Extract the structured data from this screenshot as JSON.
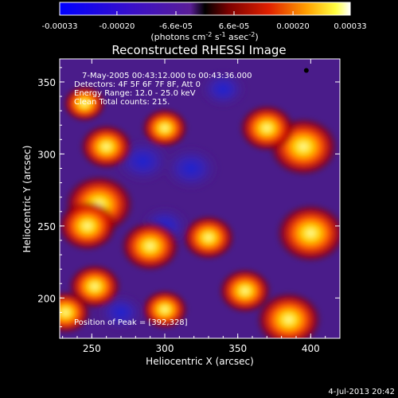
{
  "chart_data": {
    "type": "heatmap",
    "title": "Reconstructed RHESSI Image",
    "xlabel": "Heliocentric X (arcsec)",
    "ylabel": "Heliocentric Y (arcsec)",
    "xlim": [
      228,
      420
    ],
    "ylim": [
      172,
      366
    ],
    "xticks": [
      "250",
      "300",
      "350",
      "400"
    ],
    "yticks": [
      "200",
      "250",
      "300",
      "350"
    ],
    "colorbar": {
      "range": [
        -0.00033,
        0.00033
      ],
      "ticks": [
        "-0.00033",
        "-0.00020",
        "-6.6e-05",
        "6.6e-05",
        "0.00020",
        "0.00033"
      ],
      "label": "(photons cm",
      "label_exp1": "-2",
      "label_mid": " s",
      "label_exp2": "-1",
      "label_mid2": " asec",
      "label_exp3": "-2",
      "label_end": ")"
    },
    "annotations": [
      "7-May-2005 00:43:12.000 to 00:43:36.000",
      "Detectors: 4F 5F 6F 7F 8F, Att 0",
      "Energy Range: 12.0 - 25.0 keV",
      "Clean     Total counts: 215."
    ],
    "peak_label": "Position of Peak = [392,328]",
    "peak": [
      392,
      328
    ],
    "peak_marker": [
      397,
      358
    ],
    "blobs": [
      {
        "x": 255,
        "y": 265,
        "value": 0.00033
      },
      {
        "x": 247,
        "y": 250,
        "value": 0.00025
      },
      {
        "x": 290,
        "y": 236,
        "value": 0.00025
      },
      {
        "x": 330,
        "y": 242,
        "value": 0.0002
      },
      {
        "x": 400,
        "y": 245,
        "value": 0.00033
      },
      {
        "x": 395,
        "y": 305,
        "value": 0.00033
      },
      {
        "x": 370,
        "y": 318,
        "value": 0.00022
      },
      {
        "x": 260,
        "y": 305,
        "value": 0.0002
      },
      {
        "x": 300,
        "y": 318,
        "value": 0.00015
      },
      {
        "x": 245,
        "y": 335,
        "value": 0.00012
      },
      {
        "x": 355,
        "y": 205,
        "value": 0.0002
      },
      {
        "x": 385,
        "y": 185,
        "value": 0.0003
      },
      {
        "x": 252,
        "y": 208,
        "value": 0.0002
      },
      {
        "x": 300,
        "y": 192,
        "value": 0.00015
      },
      {
        "x": 232,
        "y": 190,
        "value": 0.00018
      },
      {
        "x": 318,
        "y": 290,
        "value": -0.00015
      },
      {
        "x": 300,
        "y": 250,
        "value": -0.00012
      },
      {
        "x": 285,
        "y": 295,
        "value": -0.00015
      },
      {
        "x": 340,
        "y": 345,
        "value": -0.0001
      },
      {
        "x": 270,
        "y": 190,
        "value": -0.0001
      }
    ]
  }
}
